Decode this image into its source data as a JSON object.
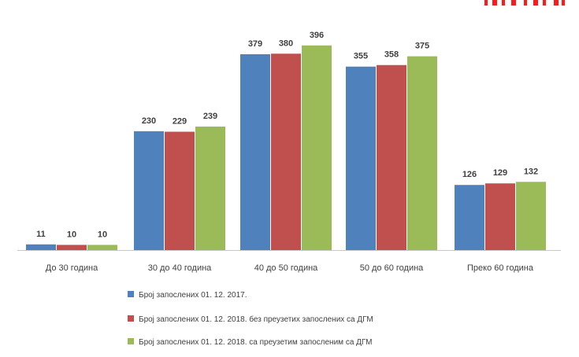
{
  "colors": {
    "series": [
      "#4f81bd",
      "#c0504d",
      "#9bbb59"
    ],
    "corner_mark": "#ff1a1a",
    "axis": "#c8c8c8",
    "label_text": "#404040"
  },
  "chart_data": {
    "type": "bar",
    "categories": [
      "До 30 година",
      "30 до 40 година",
      "40 до 50 година",
      "50 до 60 година",
      "Преко 60 година"
    ],
    "series": [
      {
        "name": "Број запослених 01. 12. 2017.",
        "values": [
          11,
          230,
          379,
          355,
          126
        ]
      },
      {
        "name": "Број запослених 01. 12. 2018. без преузетих запослених са ДГМ",
        "values": [
          10,
          229,
          380,
          358,
          129
        ]
      },
      {
        "name": "Број запослених 01. 12. 2018. са преузетим запосленим са ДГМ",
        "values": [
          10,
          239,
          396,
          375,
          132
        ]
      }
    ],
    "ylim": [
      0,
      420
    ],
    "grid": false,
    "data_labels": true,
    "legend_placement": "bottom"
  }
}
